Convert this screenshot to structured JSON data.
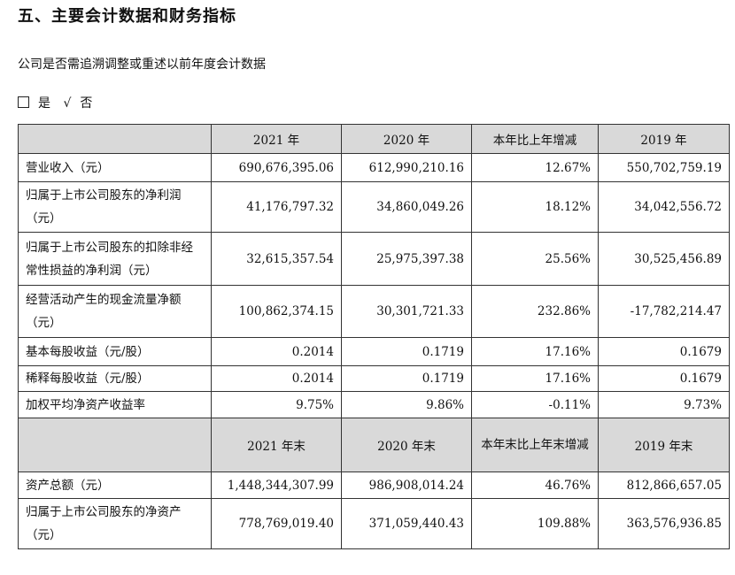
{
  "section_title": "五、主要会计数据和财务指标",
  "restatement_question": "公司是否需追溯调整或重述以前年度会计数据",
  "choice": {
    "yes_label": "是",
    "check_mark": "√",
    "no_label": "否"
  },
  "table1": {
    "headers": [
      "2021 年",
      "2020 年",
      "本年比上年增减",
      "2019 年"
    ],
    "rows": [
      {
        "label": "营业收入（元）",
        "values": [
          "690,676,395.06",
          "612,990,210.16",
          "12.67%",
          "550,702,759.19"
        ]
      },
      {
        "label": "归属于上市公司股东的净利润（元）",
        "values": [
          "41,176,797.32",
          "34,860,049.26",
          "18.12%",
          "34,042,556.72"
        ]
      },
      {
        "label": "归属于上市公司股东的扣除非经常性损益的净利润（元）",
        "values": [
          "32,615,357.54",
          "25,975,397.38",
          "25.56%",
          "30,525,456.89"
        ]
      },
      {
        "label": "经营活动产生的现金流量净额（元）",
        "values": [
          "100,862,374.15",
          "30,301,721.33",
          "232.86%",
          "-17,782,214.47"
        ]
      },
      {
        "label": "基本每股收益（元/股）",
        "values": [
          "0.2014",
          "0.1719",
          "17.16%",
          "0.1679"
        ]
      },
      {
        "label": "稀释每股收益（元/股）",
        "values": [
          "0.2014",
          "0.1719",
          "17.16%",
          "0.1679"
        ]
      },
      {
        "label": "加权平均净资产收益率",
        "values": [
          "9.75%",
          "9.86%",
          "-0.11%",
          "9.73%"
        ]
      }
    ]
  },
  "table2": {
    "headers": [
      "2021 年末",
      "2020 年末",
      "本年末比上年末增减",
      "2019 年末"
    ],
    "rows": [
      {
        "label": "资产总额（元）",
        "values": [
          "1,448,344,307.99",
          "986,908,014.24",
          "46.76%",
          "812,866,657.05"
        ]
      },
      {
        "label": "归属于上市公司股东的净资产（元）",
        "values": [
          "778,769,019.40",
          "371,059,440.43",
          "109.88%",
          "363,576,936.85"
        ]
      }
    ]
  }
}
